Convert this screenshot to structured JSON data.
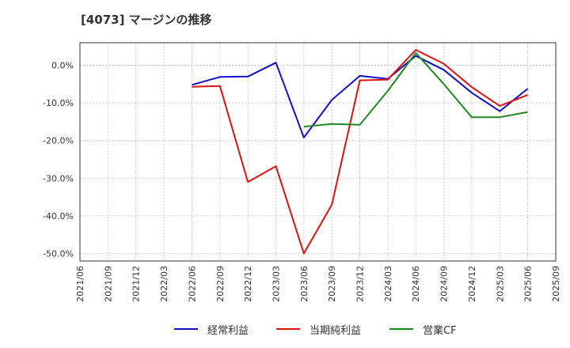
{
  "title": "[4073]  マージンの推移",
  "chart_data": {
    "type": "line",
    "title": "[4073]  マージンの推移",
    "xlabel": "",
    "ylabel": "",
    "ylim": [
      -52,
      6
    ],
    "yticks": [
      0,
      -10,
      -20,
      -30,
      -40,
      -50
    ],
    "ytick_labels": [
      "0.0%",
      "-10.0%",
      "-20.0%",
      "-30.0%",
      "-40.0%",
      "-50.0%"
    ],
    "grid": true,
    "legend": "bottom",
    "x": [
      "2021/06",
      "2021/09",
      "2021/12",
      "2022/03",
      "2022/06",
      "2022/09",
      "2022/12",
      "2023/03",
      "2023/06",
      "2023/09",
      "2023/12",
      "2024/03",
      "2024/06",
      "2024/09",
      "2024/12",
      "2025/03",
      "2025/06",
      "2025/09"
    ],
    "series": [
      {
        "name": "経常利益",
        "color": "#1111cc",
        "values": [
          null,
          null,
          null,
          null,
          -5.2,
          -3.1,
          -3.0,
          0.7,
          -19.2,
          -9.2,
          -2.8,
          -3.6,
          2.5,
          -1.2,
          -7.3,
          -12.2,
          -6.2,
          null
        ]
      },
      {
        "name": "当期純利益",
        "color": "#dd1111",
        "values": [
          null,
          null,
          null,
          null,
          -5.7,
          -5.5,
          -31.0,
          -26.8,
          -50.0,
          -37.0,
          -4.0,
          -3.8,
          4.1,
          0.4,
          -5.8,
          -10.8,
          -7.9,
          null
        ]
      },
      {
        "name": "営業CF",
        "color": "#228822",
        "values": [
          null,
          null,
          null,
          null,
          null,
          null,
          null,
          null,
          -16.3,
          -15.6,
          -15.8,
          -6.8,
          3.3,
          -5.0,
          -13.8,
          -13.8,
          -12.4,
          null
        ]
      }
    ]
  }
}
